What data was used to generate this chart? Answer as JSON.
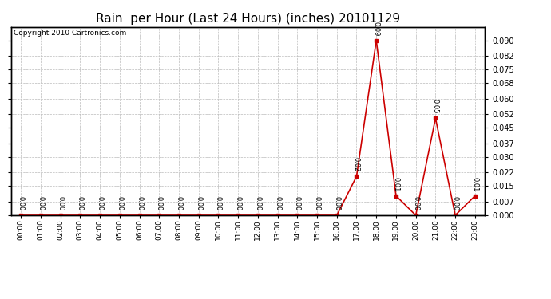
{
  "title": "Rain  per Hour (Last 24 Hours) (inches) 20101129",
  "copyright": "Copyright 2010 Cartronics.com",
  "hours": [
    "00:00",
    "01:00",
    "02:00",
    "03:00",
    "04:00",
    "05:00",
    "06:00",
    "07:00",
    "08:00",
    "09:00",
    "10:00",
    "11:00",
    "12:00",
    "13:00",
    "14:00",
    "15:00",
    "16:00",
    "17:00",
    "18:00",
    "19:00",
    "20:00",
    "21:00",
    "22:00",
    "23:00"
  ],
  "values": [
    0.0,
    0.0,
    0.0,
    0.0,
    0.0,
    0.0,
    0.0,
    0.0,
    0.0,
    0.0,
    0.0,
    0.0,
    0.0,
    0.0,
    0.0,
    0.0,
    0.0,
    0.02,
    0.09,
    0.01,
    0.0,
    0.05,
    0.0,
    0.01
  ],
  "line_color": "#cc0000",
  "marker_color": "#cc0000",
  "bg_color": "#ffffff",
  "grid_color": "#bbbbbb",
  "title_fontsize": 11,
  "ylim": [
    0.0,
    0.097
  ],
  "yticks": [
    0.0,
    0.007,
    0.015,
    0.022,
    0.03,
    0.037,
    0.045,
    0.052,
    0.06,
    0.068,
    0.075,
    0.082,
    0.09
  ]
}
